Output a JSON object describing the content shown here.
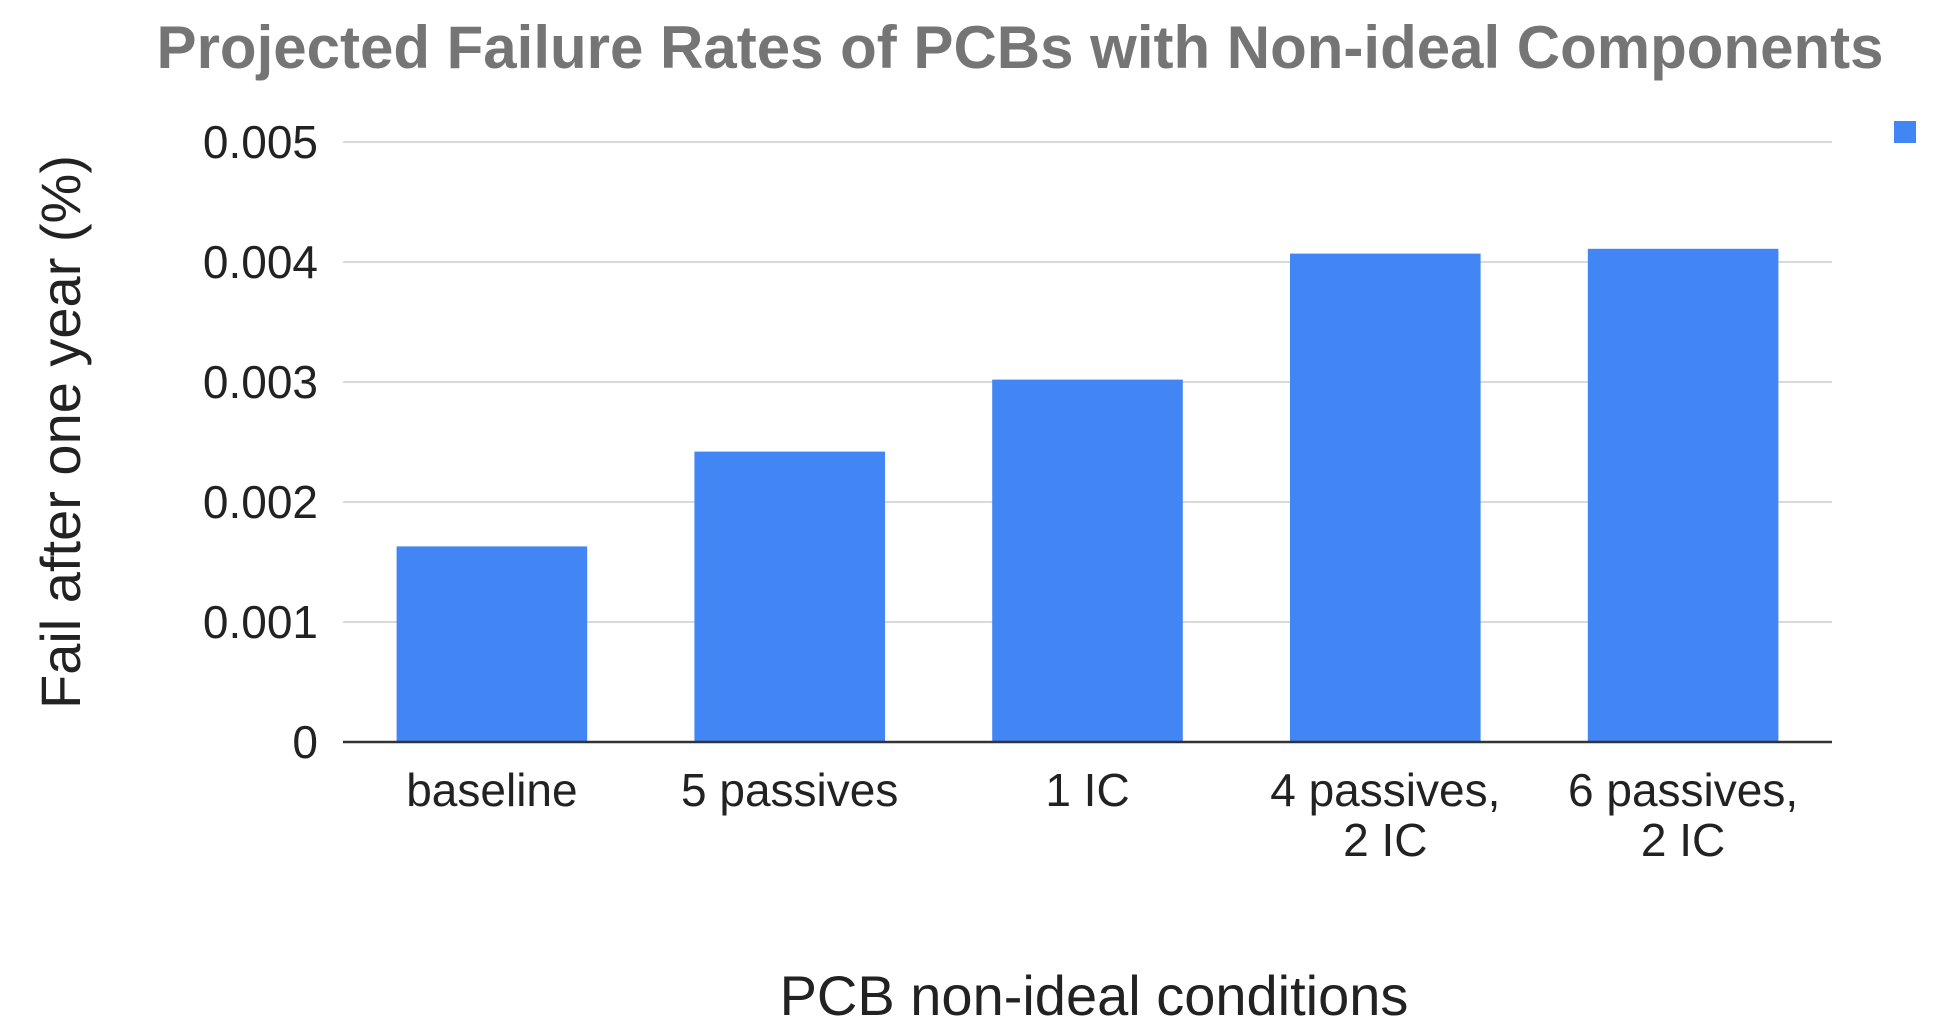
{
  "chart_data": {
    "type": "bar",
    "title": "Projected Failure Rates of PCBs with Non-ideal Components",
    "xlabel": "PCB non-ideal conditions",
    "ylabel": "Fail after one year (%)",
    "categories": [
      [
        "baseline"
      ],
      [
        "5 passives"
      ],
      [
        "1 IC"
      ],
      [
        "4 passives,",
        "2 IC"
      ],
      [
        "6 passives,",
        "2 IC"
      ]
    ],
    "series": [
      {
        "color": "#4285f4",
        "values": [
          0.00163,
          0.00242,
          0.00302,
          0.00407,
          0.00411
        ]
      }
    ],
    "ylim": [
      0,
      0.005
    ],
    "yticks": [
      "0",
      "0.001",
      "0.002",
      "0.003",
      "0.004",
      "0.005"
    ],
    "grid": true,
    "legend_position": "top-right"
  }
}
